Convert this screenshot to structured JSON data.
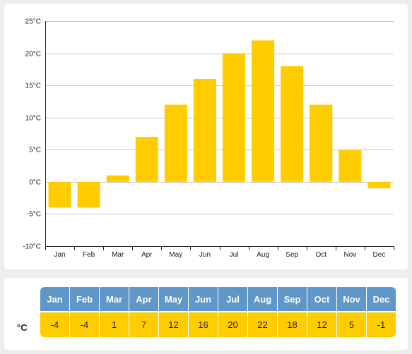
{
  "chart_data": {
    "type": "bar",
    "categories": [
      "Jan",
      "Feb",
      "Mar",
      "Apr",
      "May",
      "Jun",
      "Jul",
      "Aug",
      "Sep",
      "Oct",
      "Nov",
      "Dec"
    ],
    "values": [
      -4,
      -4,
      1,
      7,
      12,
      16,
      20,
      22,
      18,
      12,
      5,
      -1
    ],
    "ylim": [
      -10,
      25
    ],
    "yticks": [
      "25°C",
      "20°C",
      "15°C",
      "10°C",
      "5°C",
      "0°C",
      "-5°C",
      "-10°C"
    ],
    "ytick_values": [
      25,
      20,
      15,
      10,
      5,
      0,
      -5,
      -10
    ],
    "grid": true,
    "bar_color": "#ffcc00"
  },
  "table": {
    "unit_label": "°C",
    "months": [
      "Jan",
      "Feb",
      "Mar",
      "Apr",
      "May",
      "Jun",
      "Jul",
      "Aug",
      "Sep",
      "Oct",
      "Nov",
      "Dec"
    ],
    "values": [
      "-4",
      "-4",
      "1",
      "7",
      "12",
      "16",
      "20",
      "22",
      "18",
      "12",
      "5",
      "-1"
    ],
    "header_color": "#5f97c8",
    "value_color": "#ffcc00"
  }
}
